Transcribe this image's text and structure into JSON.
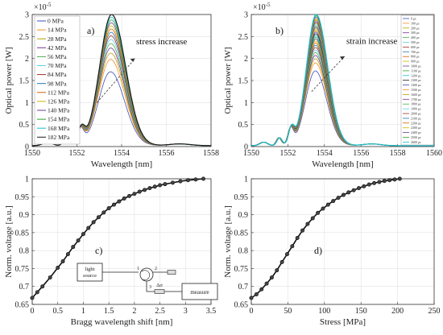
{
  "chart_data": [
    {
      "type": "line",
      "panel_label": "a)",
      "xlabel": "Wavelength [nm]",
      "ylabel": "Optical power [W]",
      "exponent_label": "×10",
      "exponent": "-5",
      "xlim": [
        1550,
        1558
      ],
      "ylim": [
        0,
        3
      ],
      "xticks": [
        1550,
        1552,
        1554,
        1556,
        1558
      ],
      "yticks": [
        0,
        0.5,
        1,
        1.5,
        2,
        2.5,
        3
      ],
      "annotation": "stress increase",
      "legend": [
        "0 MPa",
        "14 MPa",
        "28 MPa",
        "42 MPa",
        "56 MPa",
        "70 MPa",
        "84 MPa",
        "98 MPa",
        "112 MPa",
        "126 MPa",
        "140 MPa",
        "154 MPa",
        "168 MPa",
        "182 MPa"
      ],
      "series_count": 14,
      "peak_wavelength": 1553.5,
      "peak_min": 1.68,
      "peak_max": 2.98
    },
    {
      "type": "line",
      "panel_label": "b)",
      "xlabel": "Wavelength [nm]",
      "ylabel": "Optical power [W]",
      "exponent_label": "×10",
      "exponent": "-5",
      "xlim": [
        1550,
        1560
      ],
      "ylim": [
        0,
        3
      ],
      "xticks": [
        1550,
        1552,
        1554,
        1556,
        1558,
        1560
      ],
      "yticks": [
        0,
        0.5,
        1,
        1.5,
        2,
        2.5,
        3
      ],
      "annotation": "strain increase",
      "legend": [
        "0 με",
        "100 με",
        "200 με",
        "300 με",
        "400 με",
        "500 με",
        "600 με",
        "700 με",
        "800 με",
        "900 με",
        "1000 με",
        "1100 με",
        "1200 με",
        "1300 με",
        "1400 με",
        "1500 με",
        "1600 με",
        "1700 με",
        "1800 με",
        "1900 με",
        "2000 με",
        "2100 με",
        "2200 με",
        "2300 με",
        "2400 με",
        "2500 με",
        "2600 με"
      ],
      "series_count": 27,
      "peak_wavelength": 1553.5,
      "peak_min": 1.7,
      "peak_max": 2.98
    },
    {
      "type": "line",
      "panel_label": "c)",
      "xlabel": "Bragg wavelength shift [nm]",
      "ylabel": "Norm. voltage [a.u.]",
      "xlim": [
        0,
        3.5
      ],
      "ylim": [
        0.65,
        1
      ],
      "xticks": [
        0,
        0.5,
        1,
        1.5,
        2,
        2.5,
        3,
        3.5
      ],
      "yticks": [
        0.65,
        0.7,
        0.75,
        0.8,
        0.85,
        0.9,
        0.95,
        1
      ],
      "x": [
        0,
        0.1,
        0.2,
        0.35,
        0.5,
        0.6,
        0.7,
        0.8,
        0.9,
        1.0,
        1.1,
        1.2,
        1.3,
        1.4,
        1.5,
        1.6,
        1.7,
        1.8,
        1.9,
        2.0,
        2.1,
        2.2,
        2.3,
        2.4,
        2.5,
        2.6,
        2.75,
        2.9,
        3.05,
        3.2,
        3.35
      ],
      "y": [
        0.668,
        0.684,
        0.7,
        0.725,
        0.752,
        0.77,
        0.79,
        0.81,
        0.828,
        0.846,
        0.863,
        0.879,
        0.893,
        0.906,
        0.918,
        0.928,
        0.937,
        0.945,
        0.952,
        0.958,
        0.964,
        0.969,
        0.974,
        0.978,
        0.982,
        0.985,
        0.989,
        0.993,
        0.996,
        0.998,
        1.0
      ],
      "inset": {
        "source_label_1": "light",
        "source_label_2": "source",
        "port_1": "1",
        "port_2": "2",
        "port_3": "3",
        "strain_label": "Δσ",
        "detector_label": "measure"
      }
    },
    {
      "type": "line",
      "panel_label": "d)",
      "xlabel": "Stress [MPa]",
      "ylabel": "Norm. voltage [a.u.]",
      "xlim": [
        0,
        250
      ],
      "ylim": [
        0.65,
        1
      ],
      "xticks": [
        0,
        50,
        100,
        150,
        200,
        250
      ],
      "yticks": [
        0.65,
        0.7,
        0.75,
        0.8,
        0.85,
        0.9,
        0.95,
        1
      ],
      "x": [
        0,
        7,
        14,
        21,
        28,
        35,
        42,
        49,
        56,
        63,
        70,
        77,
        84,
        91,
        98,
        105,
        112,
        119,
        126,
        133,
        140,
        147,
        154,
        161,
        168,
        175,
        182,
        189,
        196,
        203
      ],
      "y": [
        0.668,
        0.678,
        0.692,
        0.708,
        0.725,
        0.745,
        0.768,
        0.79,
        0.812,
        0.835,
        0.856,
        0.874,
        0.89,
        0.905,
        0.917,
        0.928,
        0.938,
        0.947,
        0.955,
        0.962,
        0.968,
        0.974,
        0.979,
        0.984,
        0.988,
        0.991,
        0.994,
        0.996,
        0.998,
        1.0
      ]
    }
  ]
}
